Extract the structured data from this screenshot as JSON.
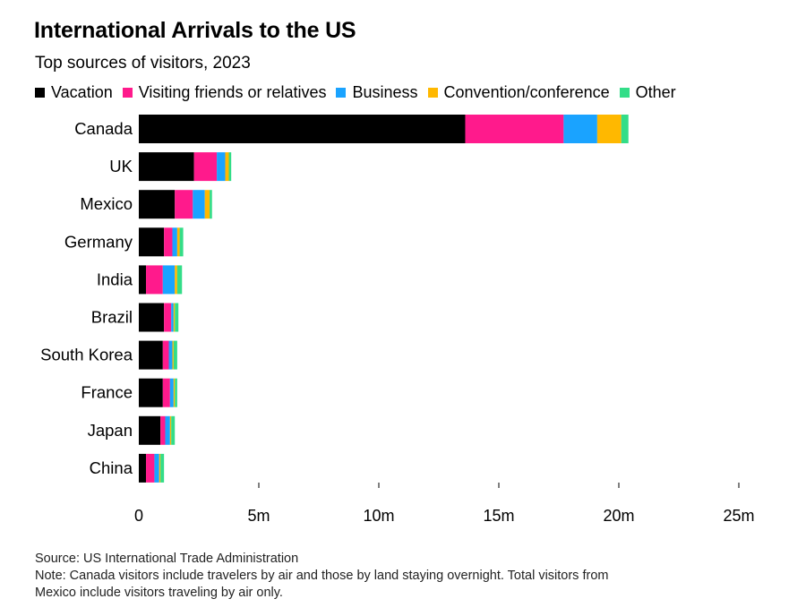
{
  "title": "International Arrivals to the US",
  "subtitle": "Top sources of visitors, 2023",
  "legend": [
    {
      "name": "Vacation",
      "color": "#000000"
    },
    {
      "name": "Visiting friends or relatives",
      "color": "#ff1a8c"
    },
    {
      "name": "Business",
      "color": "#1aa3ff"
    },
    {
      "name": "Convention/conference",
      "color": "#ffb800"
    },
    {
      "name": "Other",
      "color": "#33dd88"
    }
  ],
  "chart_data": {
    "type": "bar",
    "orientation": "horizontal",
    "stacked": true,
    "title": "International Arrivals to the US",
    "subtitle": "Top sources of visitors, 2023",
    "categories": [
      "Canada",
      "UK",
      "Mexico",
      "Germany",
      "India",
      "Brazil",
      "South Korea",
      "France",
      "Japan",
      "China"
    ],
    "series": [
      {
        "name": "Vacation",
        "color": "#000000",
        "values": [
          13.6,
          2.3,
          1.5,
          1.05,
          0.3,
          1.05,
          1.0,
          1.0,
          0.9,
          0.3
        ]
      },
      {
        "name": "Visiting friends or relatives",
        "color": "#ff1a8c",
        "values": [
          4.1,
          0.95,
          0.75,
          0.35,
          0.7,
          0.3,
          0.25,
          0.3,
          0.2,
          0.35
        ]
      },
      {
        "name": "Business",
        "color": "#1aa3ff",
        "values": [
          1.4,
          0.35,
          0.5,
          0.2,
          0.5,
          0.1,
          0.15,
          0.15,
          0.2,
          0.2
        ]
      },
      {
        "name": "Convention/conference",
        "color": "#ffb800",
        "values": [
          1.0,
          0.15,
          0.2,
          0.1,
          0.1,
          0.05,
          0.05,
          0.05,
          0.05,
          0.05
        ]
      },
      {
        "name": "Other",
        "color": "#33dd88",
        "values": [
          0.3,
          0.1,
          0.1,
          0.15,
          0.2,
          0.15,
          0.15,
          0.1,
          0.15,
          0.15
        ]
      }
    ],
    "xlim": [
      0,
      25
    ],
    "xticks": [
      0,
      5,
      10,
      15,
      20,
      25
    ],
    "xtick_labels": [
      "0",
      "5m",
      "10m",
      "15m",
      "20m",
      "25m"
    ],
    "xlabel": "",
    "ylabel": "",
    "grid": false,
    "legend_position": "top-left"
  },
  "footer": {
    "source": "Source: US International Trade Administration",
    "note_line1": "Note: Canada visitors include travelers by air and those by land staying overnight. Total visitors from",
    "note_line2": "Mexico include visitors traveling by air only."
  }
}
